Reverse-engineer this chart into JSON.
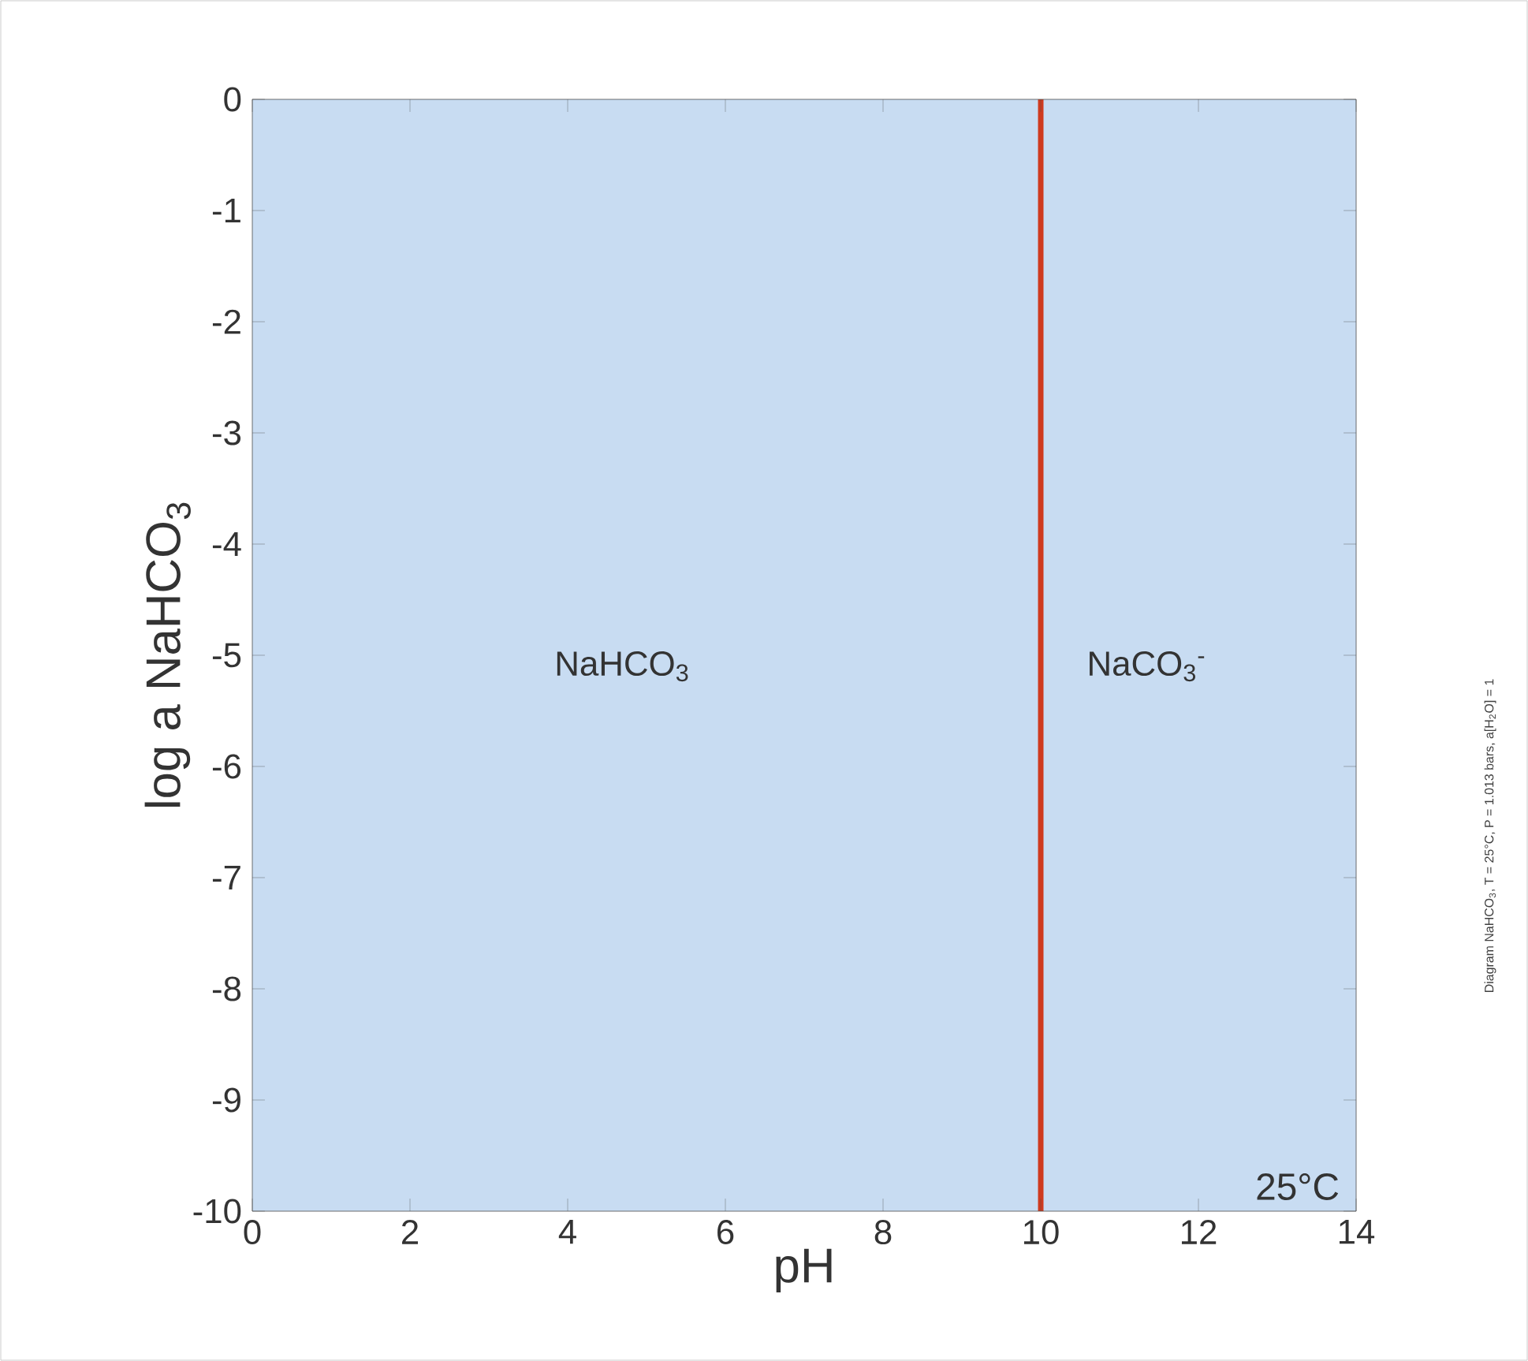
{
  "chart_data": {
    "type": "line",
    "xlabel": "pH",
    "ylabel": "log a NaHCO$_{3}$",
    "x": [
      10,
      10
    ],
    "series": [
      {
        "color": "#cf3a1f",
        "values": [
          -10,
          0
        ]
      }
    ],
    "xlim": [
      0,
      14
    ],
    "ylim": [
      -10,
      0
    ],
    "xticks": [
      0,
      2,
      4,
      6,
      8,
      10,
      12,
      14
    ],
    "yticks": [
      -10,
      -9,
      -8,
      -7,
      -6,
      -5,
      -4,
      -3,
      -2,
      -1,
      0
    ],
    "bands": [
      {
        "axis": "x",
        "from": 0,
        "to": 14,
        "color": "#c8dcf2"
      }
    ],
    "annotations": [
      "NaHCO$_{3}$",
      "NaCO$_{3}$$^{-}$",
      "25°C",
      "Diagram NaHCO$_{3}$, T = 25°C, P = 1.013 bars, a[H$_{2}$O] = 1"
    ],
    "grid": false,
    "marker": "none",
    "line_style": "solid"
  }
}
